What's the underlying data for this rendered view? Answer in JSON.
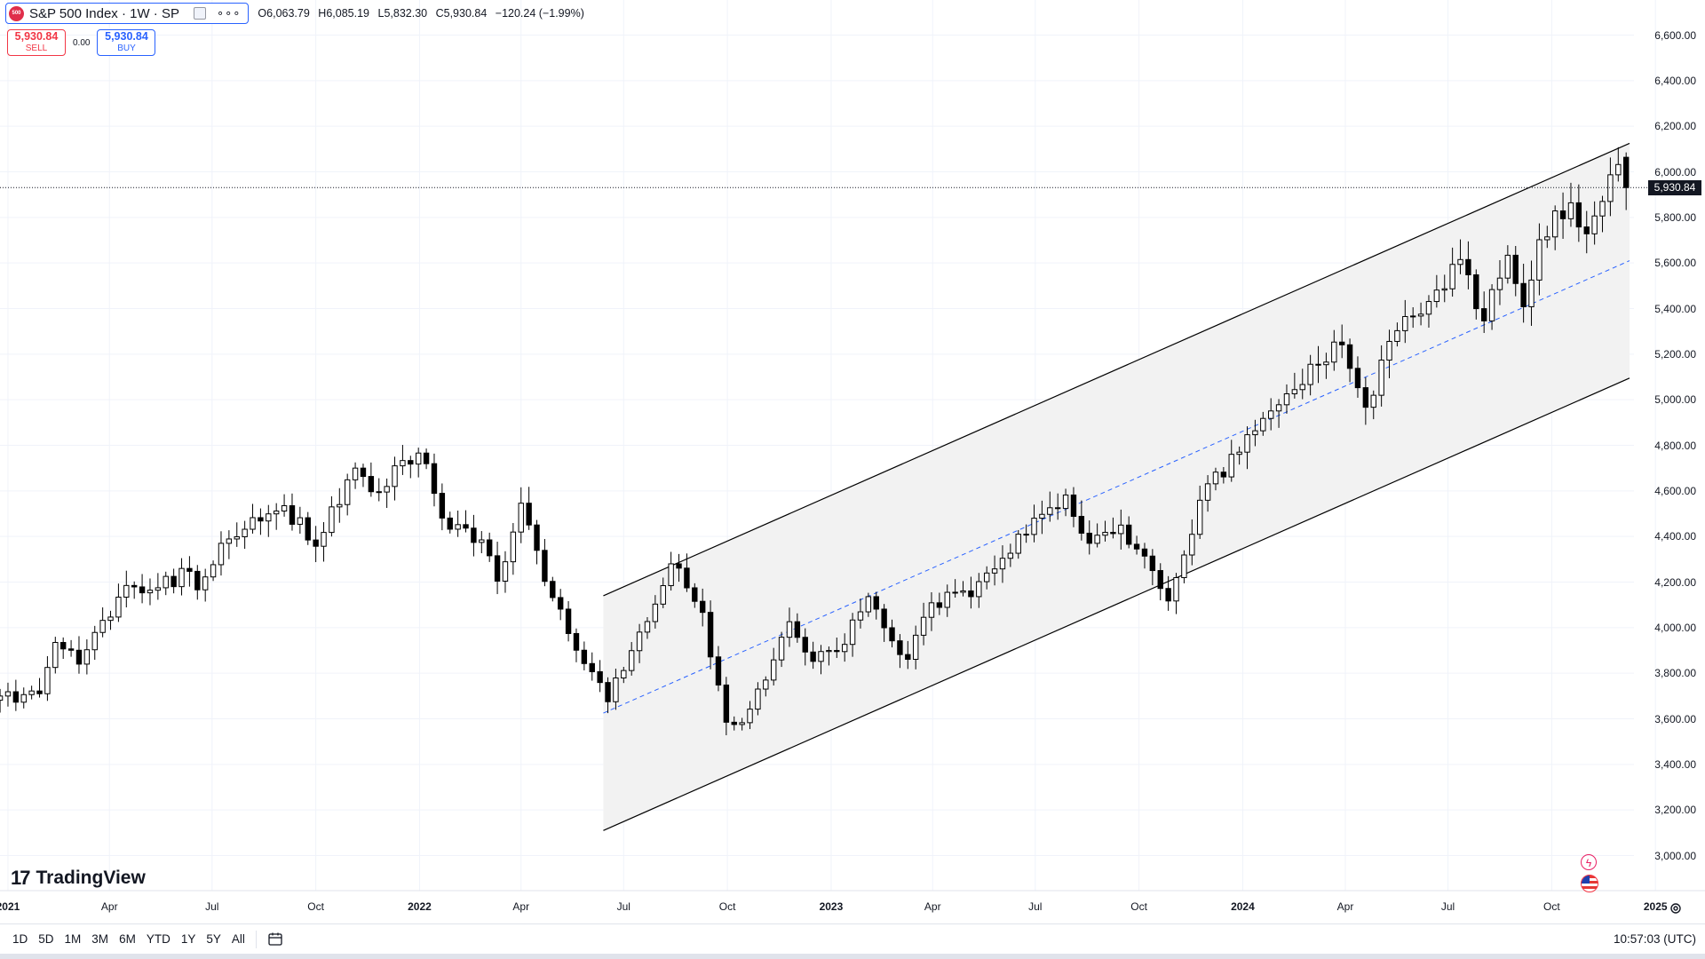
{
  "header": {
    "symbol_logo": "500",
    "symbol_title": "S&P 500 Index · 1W · SP",
    "more": "∘∘∘",
    "ohlc": {
      "o_label": "O",
      "o_value": "6,063.79",
      "h_label": "H",
      "h_value": "6,085.19",
      "l_label": "L",
      "l_value": "5,832.30",
      "c_label": "C",
      "c_value": "5,930.84",
      "change": "−120.24 (−1.99%)"
    }
  },
  "trade": {
    "sell_price": "5,930.84",
    "sell_label": "SELL",
    "spread": "0.00",
    "buy_price": "5,930.84",
    "buy_label": "BUY"
  },
  "y_axis": {
    "labels": [
      "6,600.00",
      "6,400.00",
      "6,200.00",
      "6,000.00",
      "5,800.00",
      "5,600.00",
      "5,400.00",
      "5,200.00",
      "5,000.00",
      "4,800.00",
      "4,600.00",
      "4,400.00",
      "4,200.00",
      "4,000.00",
      "3,800.00",
      "3,600.00",
      "3,400.00",
      "3,200.00",
      "3,000.00"
    ],
    "current_price_tag": "5,930.84"
  },
  "x_axis": {
    "labels": [
      {
        "text": "2021",
        "year": true
      },
      {
        "text": "Apr",
        "year": false
      },
      {
        "text": "Jul",
        "year": false
      },
      {
        "text": "Oct",
        "year": false
      },
      {
        "text": "2022",
        "year": true
      },
      {
        "text": "Apr",
        "year": false
      },
      {
        "text": "Jul",
        "year": false
      },
      {
        "text": "Oct",
        "year": false
      },
      {
        "text": "2023",
        "year": true
      },
      {
        "text": "Apr",
        "year": false
      },
      {
        "text": "Jul",
        "year": false
      },
      {
        "text": "Oct",
        "year": false
      },
      {
        "text": "2024",
        "year": true
      },
      {
        "text": "Apr",
        "year": false
      },
      {
        "text": "Jul",
        "year": false
      },
      {
        "text": "Oct",
        "year": false
      },
      {
        "text": "2025",
        "year": true
      }
    ]
  },
  "branding": {
    "logo_mark": "17",
    "logo_text": "TradingView"
  },
  "bottom_bar": {
    "ranges": [
      "1D",
      "5D",
      "1M",
      "3M",
      "6M",
      "YTD",
      "1Y",
      "5Y",
      "All"
    ],
    "clock": "10:57:03 (UTC)"
  },
  "colors": {
    "up_body": "#ffffff",
    "down_body": "#000000",
    "wick": "#000000",
    "channel_fill": "#f2f2f2",
    "channel_line": "#000000",
    "midline": "#2962ff",
    "grid": "#f0f3fa",
    "sell": "#f23645",
    "buy": "#2962ff"
  },
  "chart_data": {
    "type": "candlestick",
    "title": "S&P 500 Index · 1W · SP",
    "interval": "1W",
    "ylim": [
      2900,
      6650
    ],
    "y_ticks": [
      3000,
      3200,
      3400,
      3600,
      3800,
      4000,
      4200,
      4400,
      4600,
      4800,
      5000,
      5200,
      5400,
      5600,
      5800,
      6000,
      6200,
      6400,
      6600
    ],
    "x_range": [
      "2020-12-21",
      "2024-12-09"
    ],
    "x_ticks": [
      "2021-01-01",
      "2021-04-01",
      "2021-07-01",
      "2021-10-01",
      "2022-01-01",
      "2022-04-01",
      "2022-07-01",
      "2022-10-01",
      "2023-01-01",
      "2023-04-01",
      "2023-07-01",
      "2023-10-01",
      "2024-01-01",
      "2024-04-01",
      "2024-07-01",
      "2024-10-01",
      "2025-01-01"
    ],
    "current_price": 5930.84,
    "last_bar": {
      "open": 6063.79,
      "high": 6085.19,
      "low": 5832.3,
      "close": 5930.84
    },
    "anchors": [
      [
        "2020-12-25",
        3700
      ],
      [
        "2021-01-29",
        3710
      ],
      [
        "2021-02-12",
        3935
      ],
      [
        "2021-03-05",
        3840
      ],
      [
        "2021-04-16",
        4185
      ],
      [
        "2021-05-14",
        4175
      ],
      [
        "2021-06-11",
        4247
      ],
      [
        "2021-06-18",
        4166
      ],
      [
        "2021-07-09",
        4370
      ],
      [
        "2021-08-13",
        4468
      ],
      [
        "2021-09-03",
        4535
      ],
      [
        "2021-10-01",
        4357
      ],
      [
        "2021-11-05",
        4700
      ],
      [
        "2021-11-26",
        4595
      ],
      [
        "2021-12-10",
        4710
      ],
      [
        "2021-12-31",
        4766
      ],
      [
        "2022-01-28",
        4432
      ],
      [
        "2022-02-25",
        4385
      ],
      [
        "2022-03-11",
        4204
      ],
      [
        "2022-04-01",
        4546
      ],
      [
        "2022-04-29",
        4132
      ],
      [
        "2022-05-20",
        3901
      ],
      [
        "2022-06-17",
        3675
      ],
      [
        "2022-07-08",
        3899
      ],
      [
        "2022-08-12",
        4280
      ],
      [
        "2022-09-09",
        4067
      ],
      [
        "2022-09-30",
        3585
      ],
      [
        "2022-10-14",
        3583
      ],
      [
        "2022-11-04",
        3770
      ],
      [
        "2022-11-25",
        4026
      ],
      [
        "2022-12-16",
        3852
      ],
      [
        "2023-01-06",
        3895
      ],
      [
        "2023-02-03",
        4136
      ],
      [
        "2023-03-10",
        3861
      ],
      [
        "2023-03-31",
        4109
      ],
      [
        "2023-05-05",
        4136
      ],
      [
        "2023-06-16",
        4410
      ],
      [
        "2023-07-28",
        4582
      ],
      [
        "2023-08-18",
        4370
      ],
      [
        "2023-09-15",
        4450
      ],
      [
        "2023-10-27",
        4117
      ],
      [
        "2023-11-24",
        4559
      ],
      [
        "2023-12-29",
        4770
      ],
      [
        "2024-02-09",
        5026
      ],
      [
        "2024-03-28",
        5254
      ],
      [
        "2024-04-19",
        4967
      ],
      [
        "2024-05-17",
        5303
      ],
      [
        "2024-06-14",
        5431
      ],
      [
        "2024-07-12",
        5615
      ],
      [
        "2024-08-02",
        5346
      ],
      [
        "2024-08-23",
        5634
      ],
      [
        "2024-09-06",
        5408
      ],
      [
        "2024-09-20",
        5702
      ],
      [
        "2024-10-18",
        5864
      ],
      [
        "2024-11-01",
        5728
      ],
      [
        "2024-11-15",
        5870
      ],
      [
        "2024-11-29",
        6032
      ],
      [
        "2024-12-06",
        6090
      ]
    ],
    "drawings": [
      {
        "name": "channel-upper",
        "type": "line",
        "points": [
          [
            "2022-06-13",
            4140
          ],
          [
            "2024-12-09",
            6125
          ]
        ]
      },
      {
        "name": "channel-lower",
        "type": "line",
        "points": [
          [
            "2022-06-13",
            3110
          ],
          [
            "2024-12-09",
            5095
          ]
        ]
      },
      {
        "name": "channel-mid",
        "type": "dashed-line",
        "points": [
          [
            "2022-06-13",
            3625
          ],
          [
            "2024-12-09",
            5610
          ]
        ]
      }
    ]
  }
}
